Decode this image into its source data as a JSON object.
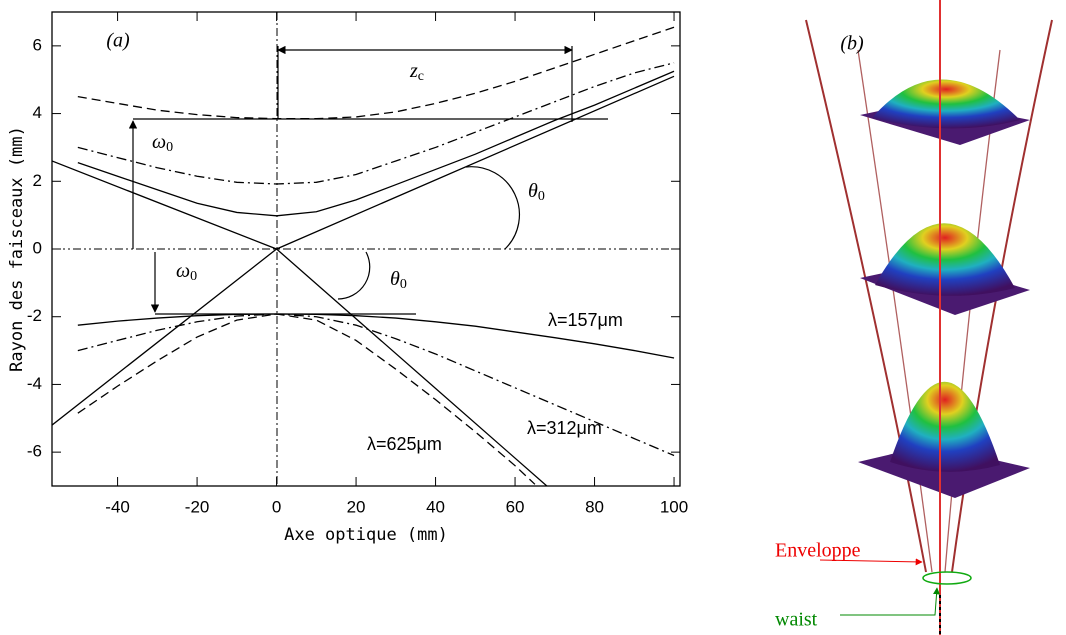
{
  "chart_data": {
    "type": "line",
    "panel_label": "(a)",
    "xlabel": "Axe optique (mm)",
    "ylabel": "Rayon des faisceaux (mm)",
    "xlim": [
      -56.5,
      101.5
    ],
    "ylim": [
      -7,
      7
    ],
    "xticks": [
      -40,
      -20,
      0,
      20,
      40,
      60,
      80,
      100
    ],
    "yticks": [
      -6,
      -4,
      -2,
      0,
      2,
      4,
      6
    ],
    "series": [
      {
        "style": "dashed",
        "color": "#000000",
        "x": [
          -50,
          -40,
          -30,
          -20,
          -10,
          0,
          10,
          20,
          30,
          40,
          50,
          60,
          70,
          80,
          90,
          100
        ],
        "values": [
          4.5,
          4.3,
          4.1,
          3.97,
          3.88,
          3.85,
          3.85,
          3.9,
          4.05,
          4.3,
          4.6,
          4.95,
          5.35,
          5.75,
          6.15,
          6.55
        ]
      },
      {
        "style": "dash-dot",
        "color": "#000000",
        "x": [
          -50,
          -40,
          -30,
          -20,
          -10,
          0,
          10,
          20,
          30,
          40,
          50,
          60,
          70,
          80,
          90,
          100
        ],
        "values": [
          3.0,
          2.7,
          2.4,
          2.15,
          1.97,
          1.92,
          1.97,
          2.2,
          2.6,
          3.0,
          3.45,
          3.9,
          4.35,
          4.8,
          5.2,
          5.5
        ]
      },
      {
        "style": "solid",
        "color": "#000000",
        "x": [
          -50,
          -40,
          -30,
          -20,
          -10,
          0,
          10,
          20,
          30,
          40,
          50,
          60,
          70,
          80,
          90,
          100
        ],
        "values": [
          2.55,
          2.15,
          1.75,
          1.35,
          1.08,
          0.98,
          1.1,
          1.45,
          1.9,
          2.35,
          2.8,
          3.3,
          3.8,
          4.25,
          4.75,
          5.25
        ]
      },
      {
        "style": "solid",
        "color": "#000000",
        "x": [
          -56.5,
          0,
          100
        ],
        "values": [
          2.6,
          0,
          5.1
        ]
      },
      {
        "style": "solid",
        "color": "#000000",
        "x": [
          -56.5,
          0,
          68
        ],
        "values": [
          -5.2,
          0,
          -7
        ]
      },
      {
        "style": "solid",
        "color": "#000000",
        "x": [
          -50,
          -40,
          -30,
          -20,
          -10,
          0,
          10,
          20,
          30,
          40,
          50,
          60,
          70,
          80,
          90,
          100
        ],
        "values": [
          -2.25,
          -2.13,
          -2.04,
          -1.97,
          -1.93,
          -1.92,
          -1.93,
          -1.97,
          -2.04,
          -2.15,
          -2.28,
          -2.45,
          -2.62,
          -2.8,
          -3.0,
          -3.22
        ]
      },
      {
        "style": "dash-dot",
        "color": "#000000",
        "x": [
          -50,
          -40,
          -30,
          -20,
          -10,
          0,
          10,
          20,
          30,
          40,
          50,
          60,
          70,
          80,
          90,
          100
        ],
        "values": [
          -3.0,
          -2.7,
          -2.4,
          -2.15,
          -1.98,
          -1.92,
          -2.0,
          -2.25,
          -2.65,
          -3.1,
          -3.6,
          -4.1,
          -4.6,
          -5.1,
          -5.6,
          -6.1
        ]
      },
      {
        "style": "dashed",
        "color": "#000000",
        "x": [
          -50,
          -40,
          -30,
          -20,
          -10,
          0,
          10,
          20,
          30,
          40,
          50,
          60,
          65
        ],
        "values": [
          -4.85,
          -4.05,
          -3.3,
          -2.6,
          -2.1,
          -1.92,
          -2.1,
          -2.7,
          -3.55,
          -4.45,
          -5.4,
          -6.4,
          -6.95
        ]
      }
    ],
    "annotations": {
      "zc": {
        "base": "z",
        "sub": "c"
      },
      "omega_up": {
        "base": "ω",
        "sub": "0"
      },
      "omega_down": {
        "base": "ω",
        "sub": "0"
      },
      "theta_up": {
        "base": "θ",
        "sub": "0"
      },
      "theta_down": {
        "base": "θ",
        "sub": "0"
      },
      "lambda_157": "λ=157μm",
      "lambda_312": "λ=312μm",
      "lambda_625": "λ=625μm"
    }
  },
  "panel_b": {
    "label": "(b)",
    "envelope_label": "Enveloppe",
    "waist_label": "waist"
  }
}
